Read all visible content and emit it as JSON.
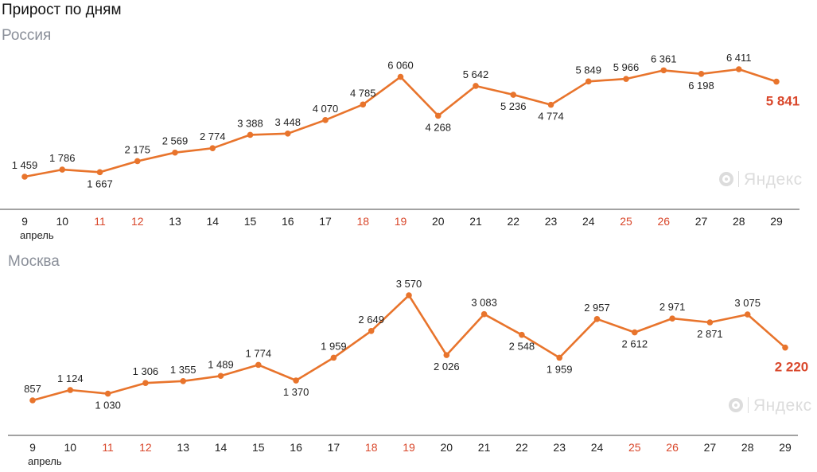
{
  "page": {
    "title": "Прирост по дням"
  },
  "watermark": {
    "text": "Яндекс"
  },
  "colors": {
    "line": "#e8742c",
    "weekend": "#d9472b",
    "weekday": "#222222",
    "highlight": "#d9472b",
    "title": "#8a8f99",
    "axis": "#444444"
  },
  "axis": {
    "month_label": "апрель"
  },
  "chart_data": [
    {
      "type": "line",
      "title": "Россия",
      "categories": [
        "9",
        "10",
        "11",
        "12",
        "13",
        "14",
        "15",
        "16",
        "17",
        "18",
        "19",
        "20",
        "21",
        "22",
        "23",
        "24",
        "25",
        "26",
        "27",
        "28",
        "29"
      ],
      "weekend_categories": [
        "11",
        "12",
        "18",
        "19",
        "25",
        "26"
      ],
      "values": [
        1459,
        1786,
        1667,
        2175,
        2569,
        2774,
        3388,
        3448,
        4070,
        4785,
        6060,
        4268,
        5642,
        5236,
        4774,
        5849,
        5966,
        6361,
        6198,
        6411,
        5841
      ],
      "value_labels": [
        "1 459",
        "1 786",
        "1 667",
        "2 175",
        "2 569",
        "2 774",
        "3 388",
        "3 448",
        "4 070",
        "4 785",
        "6 060",
        "4 268",
        "5 642",
        "5 236",
        "4 774",
        "5 849",
        "5 966",
        "6 361",
        "6 198",
        "6 411",
        "5 841"
      ],
      "grid": false,
      "ylim": [
        1459,
        6411
      ]
    },
    {
      "type": "line",
      "title": "Москва",
      "categories": [
        "9",
        "10",
        "11",
        "12",
        "13",
        "14",
        "15",
        "16",
        "17",
        "18",
        "19",
        "20",
        "21",
        "22",
        "23",
        "24",
        "25",
        "26",
        "27",
        "28",
        "29"
      ],
      "weekend_categories": [
        "11",
        "12",
        "18",
        "19",
        "25",
        "26"
      ],
      "values": [
        857,
        1124,
        1030,
        1306,
        1355,
        1489,
        1774,
        1370,
        1959,
        2649,
        3570,
        2026,
        3083,
        2548,
        1959,
        2957,
        2612,
        2971,
        2871,
        3075,
        2220
      ],
      "value_labels": [
        "857",
        "1 124",
        "1 030",
        "1 306",
        "1 355",
        "1 489",
        "1 774",
        "1 370",
        "1 959",
        "2 649",
        "3 570",
        "2 026",
        "3 083",
        "2 548",
        "1 959",
        "2 957",
        "2 612",
        "2 971",
        "2 871",
        "3 075",
        "2 220"
      ],
      "grid": false,
      "ylim": [
        857,
        3570
      ]
    }
  ]
}
